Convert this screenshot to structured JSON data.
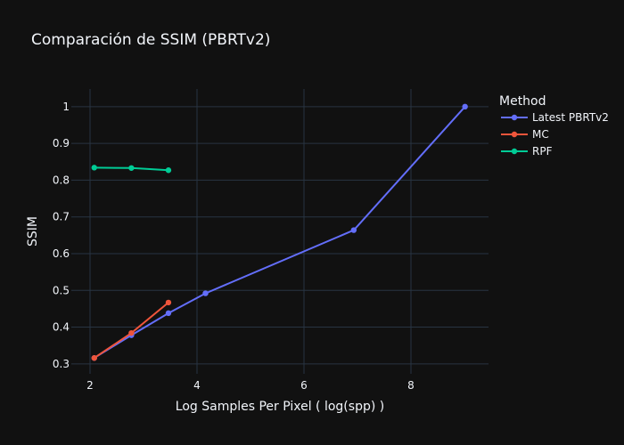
{
  "chart_data": {
    "type": "line",
    "title": "Comparación de SSIM (PBRTv2)",
    "xlabel": "Log Samples Per Pixel ( log(spp) )",
    "ylabel": "SSIM",
    "xlim": [
      1.65,
      9.45
    ],
    "ylim": [
      0.273,
      1.048
    ],
    "x_ticks": [
      2,
      4,
      6,
      8
    ],
    "y_ticks": [
      0.3,
      0.4,
      0.5,
      0.6,
      0.7,
      0.8,
      0.9,
      1
    ],
    "grid": true,
    "legend": {
      "title": "Method",
      "position": "right"
    },
    "series": [
      {
        "name": "Latest PBRTv2",
        "color": "#636efa",
        "x": [
          2.079,
          2.773,
          3.466,
          4.159,
          6.931,
          9.011
        ],
        "y": [
          0.316,
          0.378,
          0.438,
          0.492,
          0.664,
          1.0
        ]
      },
      {
        "name": "MC",
        "color": "#ef553b",
        "x": [
          2.079,
          2.773,
          3.466
        ],
        "y": [
          0.316,
          0.384,
          0.467
        ]
      },
      {
        "name": "RPF",
        "color": "#00cc96",
        "x": [
          2.079,
          2.773,
          3.466
        ],
        "y": [
          0.834,
          0.833,
          0.827
        ]
      }
    ]
  }
}
